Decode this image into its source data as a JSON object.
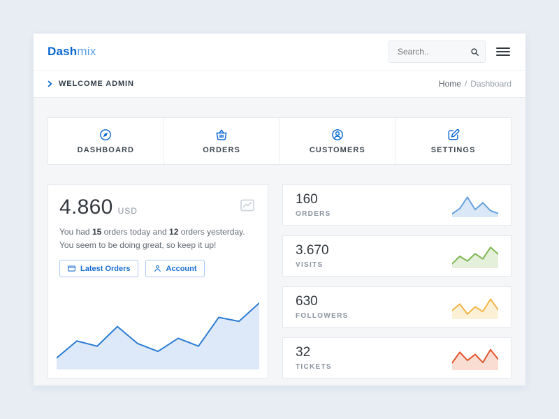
{
  "header": {
    "brand": {
      "part1": "Dash",
      "part2": "mix"
    },
    "search": {
      "placeholder": "Search.."
    }
  },
  "breadcrumb": {
    "title": "WELCOME ADMIN",
    "home": "Home",
    "separator": "/",
    "current": "Dashboard"
  },
  "nav_tiles": [
    {
      "label": "DASHBOARD",
      "icon": "compass-icon"
    },
    {
      "label": "ORDERS",
      "icon": "basket-icon"
    },
    {
      "label": "CUSTOMERS",
      "icon": "customer-icon"
    },
    {
      "label": "SETTINGS",
      "icon": "edit-icon"
    }
  ],
  "overview_card": {
    "value": "4.860",
    "currency": "USD",
    "text": {
      "pre": "You had ",
      "today_count": "15",
      "mid": " orders today and ",
      "yesterday_count": "12",
      "post": " orders yesterday.",
      "line2": "You seem to be doing great, so keep it up!"
    },
    "buttons": [
      {
        "label": "Latest Orders",
        "icon": "wallet-icon"
      },
      {
        "label": "Account",
        "icon": "user-icon"
      }
    ],
    "chart": {
      "type": "area",
      "values": [
        12,
        38,
        30,
        60,
        34,
        22,
        42,
        30,
        74,
        68,
        96
      ],
      "stroke": "#2b7cd3",
      "fill": "#dde9f8"
    }
  },
  "stats": [
    {
      "value": "160",
      "label": "ORDERS",
      "chart": {
        "type": "area",
        "values": [
          10,
          35,
          88,
          30,
          62,
          25,
          12
        ],
        "stroke": "#64a1dd",
        "fill": "#d9e7f7"
      }
    },
    {
      "value": "3.670",
      "label": "VISITS",
      "chart": {
        "type": "area",
        "values": [
          15,
          50,
          28,
          62,
          38,
          92,
          60
        ],
        "stroke": "#7cb752",
        "fill": "#e4f0da"
      }
    },
    {
      "value": "630",
      "label": "FOLLOWERS",
      "chart": {
        "type": "area",
        "values": [
          35,
          65,
          18,
          52,
          30,
          88,
          38
        ],
        "stroke": "#f3b445",
        "fill": "#fcf0d7"
      }
    },
    {
      "value": "32",
      "label": "TICKETS",
      "chart": {
        "type": "area",
        "values": [
          28,
          78,
          40,
          68,
          30,
          90,
          45
        ],
        "stroke": "#e2552b",
        "fill": "#f9ddd3"
      }
    }
  ]
}
